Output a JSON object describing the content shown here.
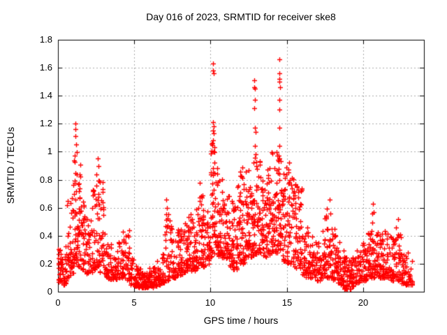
{
  "chart_data": {
    "type": "scatter",
    "title": "Day 016 of 2023, SRMTID for receiver ske8",
    "xlabel": "GPS time / hours",
    "ylabel": "SRMTID / TECUs",
    "series_name": "SRMTID",
    "xlim": [
      0,
      24
    ],
    "ylim": [
      0,
      1.8
    ],
    "xticks": [
      {
        "v": 0,
        "label": "0"
      },
      {
        "v": 5,
        "label": "5"
      },
      {
        "v": 10,
        "label": "10"
      },
      {
        "v": 15,
        "label": "15"
      },
      {
        "v": 20,
        "label": "20"
      }
    ],
    "yticks": [
      {
        "v": 0,
        "label": "0"
      },
      {
        "v": 0.2,
        "label": "0.2"
      },
      {
        "v": 0.4,
        "label": "0.4"
      },
      {
        "v": 0.6,
        "label": "0.6"
      },
      {
        "v": 0.8,
        "label": "0.8"
      },
      {
        "v": 1,
        "label": "1"
      },
      {
        "v": 1.2,
        "label": "1.2"
      },
      {
        "v": 1.4,
        "label": "1.4"
      },
      {
        "v": 1.6,
        "label": "1.6"
      },
      {
        "v": 1.8,
        "label": "1.8"
      }
    ],
    "grid": true,
    "grid_color": "#a8a8a8",
    "axis_color": "#000000",
    "background_color": "#ffffff",
    "marker": "plus",
    "marker_color": "#ff0000",
    "marker_size_px": 7,
    "legend": "none",
    "bin_width_hours": 0.25,
    "density_envelope_bins": [
      [
        0.0,
        30,
        0.07,
        0.32
      ],
      [
        0.25,
        24,
        0.05,
        0.28
      ],
      [
        0.5,
        20,
        0.08,
        0.45
      ],
      [
        0.75,
        24,
        0.12,
        0.68
      ],
      [
        1.0,
        34,
        0.18,
        1.0
      ],
      [
        1.25,
        34,
        0.18,
        0.92
      ],
      [
        1.5,
        26,
        0.15,
        0.66
      ],
      [
        1.75,
        20,
        0.13,
        0.55
      ],
      [
        2.0,
        20,
        0.14,
        0.52
      ],
      [
        2.25,
        24,
        0.16,
        0.75
      ],
      [
        2.5,
        30,
        0.18,
        0.92
      ],
      [
        2.75,
        26,
        0.14,
        0.82
      ],
      [
        3.0,
        20,
        0.1,
        0.45
      ],
      [
        3.25,
        20,
        0.09,
        0.35
      ],
      [
        3.5,
        18,
        0.09,
        0.3
      ],
      [
        3.75,
        18,
        0.09,
        0.3
      ],
      [
        4.0,
        18,
        0.1,
        0.36
      ],
      [
        4.25,
        22,
        0.1,
        0.5
      ],
      [
        4.5,
        20,
        0.08,
        0.45
      ],
      [
        4.75,
        20,
        0.05,
        0.26
      ],
      [
        5.0,
        22,
        0.04,
        0.2
      ],
      [
        5.25,
        24,
        0.03,
        0.17
      ],
      [
        5.5,
        26,
        0.03,
        0.15
      ],
      [
        5.75,
        26,
        0.03,
        0.15
      ],
      [
        6.0,
        24,
        0.03,
        0.17
      ],
      [
        6.25,
        22,
        0.04,
        0.19
      ],
      [
        6.5,
        20,
        0.05,
        0.24
      ],
      [
        6.75,
        20,
        0.06,
        0.32
      ],
      [
        7.0,
        22,
        0.08,
        0.58
      ],
      [
        7.25,
        22,
        0.1,
        0.55
      ],
      [
        7.5,
        20,
        0.1,
        0.42
      ],
      [
        7.75,
        22,
        0.12,
        0.46
      ],
      [
        8.0,
        22,
        0.12,
        0.46
      ],
      [
        8.25,
        22,
        0.14,
        0.52
      ],
      [
        8.5,
        24,
        0.15,
        0.56
      ],
      [
        8.75,
        24,
        0.15,
        0.52
      ],
      [
        9.0,
        24,
        0.16,
        0.62
      ],
      [
        9.25,
        26,
        0.18,
        0.75
      ],
      [
        9.5,
        24,
        0.18,
        0.62
      ],
      [
        9.75,
        24,
        0.2,
        0.66
      ],
      [
        10.0,
        34,
        0.25,
        1.12
      ],
      [
        10.25,
        30,
        0.25,
        0.95
      ],
      [
        10.5,
        26,
        0.25,
        0.82
      ],
      [
        10.75,
        24,
        0.24,
        0.72
      ],
      [
        11.0,
        24,
        0.24,
        0.76
      ],
      [
        11.25,
        24,
        0.18,
        0.66
      ],
      [
        11.5,
        24,
        0.16,
        0.62
      ],
      [
        11.75,
        26,
        0.2,
        0.84
      ],
      [
        12.0,
        28,
        0.2,
        0.9
      ],
      [
        12.25,
        30,
        0.25,
        0.95
      ],
      [
        12.5,
        26,
        0.25,
        0.82
      ],
      [
        12.75,
        28,
        0.26,
        1.0
      ],
      [
        13.0,
        30,
        0.28,
        0.97
      ],
      [
        13.25,
        26,
        0.26,
        0.86
      ],
      [
        13.5,
        24,
        0.25,
        0.88
      ],
      [
        13.75,
        26,
        0.26,
        0.9
      ],
      [
        14.0,
        30,
        0.28,
        1.0
      ],
      [
        14.25,
        30,
        0.28,
        1.02
      ],
      [
        14.5,
        28,
        0.28,
        0.95
      ],
      [
        14.75,
        26,
        0.22,
        0.9
      ],
      [
        15.0,
        26,
        0.2,
        0.9
      ],
      [
        15.25,
        24,
        0.2,
        0.84
      ],
      [
        15.5,
        26,
        0.17,
        0.78
      ],
      [
        15.75,
        26,
        0.16,
        0.75
      ],
      [
        16.0,
        22,
        0.12,
        0.52
      ],
      [
        16.25,
        22,
        0.1,
        0.46
      ],
      [
        16.5,
        20,
        0.1,
        0.42
      ],
      [
        16.75,
        20,
        0.08,
        0.36
      ],
      [
        17.0,
        20,
        0.08,
        0.36
      ],
      [
        17.25,
        22,
        0.1,
        0.46
      ],
      [
        17.5,
        24,
        0.1,
        0.62
      ],
      [
        17.75,
        24,
        0.1,
        0.58
      ],
      [
        18.0,
        22,
        0.08,
        0.46
      ],
      [
        18.25,
        22,
        0.06,
        0.36
      ],
      [
        18.5,
        24,
        0.04,
        0.3
      ],
      [
        18.75,
        26,
        0.02,
        0.26
      ],
      [
        19.0,
        26,
        0.02,
        0.23
      ],
      [
        19.25,
        24,
        0.04,
        0.26
      ],
      [
        19.5,
        22,
        0.06,
        0.3
      ],
      [
        19.75,
        22,
        0.08,
        0.34
      ],
      [
        20.0,
        24,
        0.08,
        0.38
      ],
      [
        20.25,
        24,
        0.1,
        0.42
      ],
      [
        20.5,
        26,
        0.1,
        0.56
      ],
      [
        20.75,
        24,
        0.1,
        0.46
      ],
      [
        21.0,
        24,
        0.1,
        0.42
      ],
      [
        21.25,
        24,
        0.1,
        0.46
      ],
      [
        21.5,
        22,
        0.1,
        0.42
      ],
      [
        21.75,
        22,
        0.08,
        0.46
      ],
      [
        22.0,
        22,
        0.1,
        0.5
      ],
      [
        22.25,
        22,
        0.08,
        0.42
      ],
      [
        22.5,
        22,
        0.06,
        0.36
      ],
      [
        22.75,
        20,
        0.05,
        0.3
      ],
      [
        23.0,
        14,
        0.05,
        0.25
      ]
    ],
    "outlier_points": [
      [
        0.58,
        0.62
      ],
      [
        0.66,
        0.65
      ],
      [
        1.13,
        1.2
      ],
      [
        1.16,
        1.16
      ],
      [
        1.14,
        1.11
      ],
      [
        1.17,
        1.05
      ],
      [
        1.12,
        0.97
      ],
      [
        2.62,
        0.95
      ],
      [
        2.66,
        0.9
      ],
      [
        7.1,
        0.66
      ],
      [
        7.15,
        0.6
      ],
      [
        9.3,
        0.78
      ],
      [
        10.17,
        1.63
      ],
      [
        10.15,
        1.58
      ],
      [
        10.21,
        1.56
      ],
      [
        10.18,
        1.21
      ],
      [
        10.2,
        1.18
      ],
      [
        10.16,
        1.15
      ],
      [
        10.22,
        1.13
      ],
      [
        10.19,
        1.08
      ],
      [
        10.24,
        1.03
      ],
      [
        11.95,
        0.86
      ],
      [
        12.0,
        0.83
      ],
      [
        12.88,
        1.51
      ],
      [
        12.86,
        1.46
      ],
      [
        12.91,
        1.45
      ],
      [
        12.9,
        1.37
      ],
      [
        12.88,
        1.31
      ],
      [
        12.9,
        1.17
      ],
      [
        12.95,
        1.14
      ],
      [
        12.93,
        1.04
      ],
      [
        14.5,
        1.66
      ],
      [
        14.54,
        1.56
      ],
      [
        14.5,
        1.52
      ],
      [
        14.53,
        1.5
      ],
      [
        14.55,
        1.46
      ],
      [
        14.5,
        1.37
      ],
      [
        14.52,
        1.3
      ],
      [
        14.51,
        1.17
      ],
      [
        14.5,
        1.04
      ],
      [
        14.48,
        0.97
      ],
      [
        14.53,
        0.95
      ],
      [
        15.15,
        0.92
      ],
      [
        17.8,
        0.66
      ],
      [
        20.65,
        0.63
      ],
      [
        20.7,
        0.57
      ],
      [
        22.3,
        0.52
      ]
    ]
  }
}
